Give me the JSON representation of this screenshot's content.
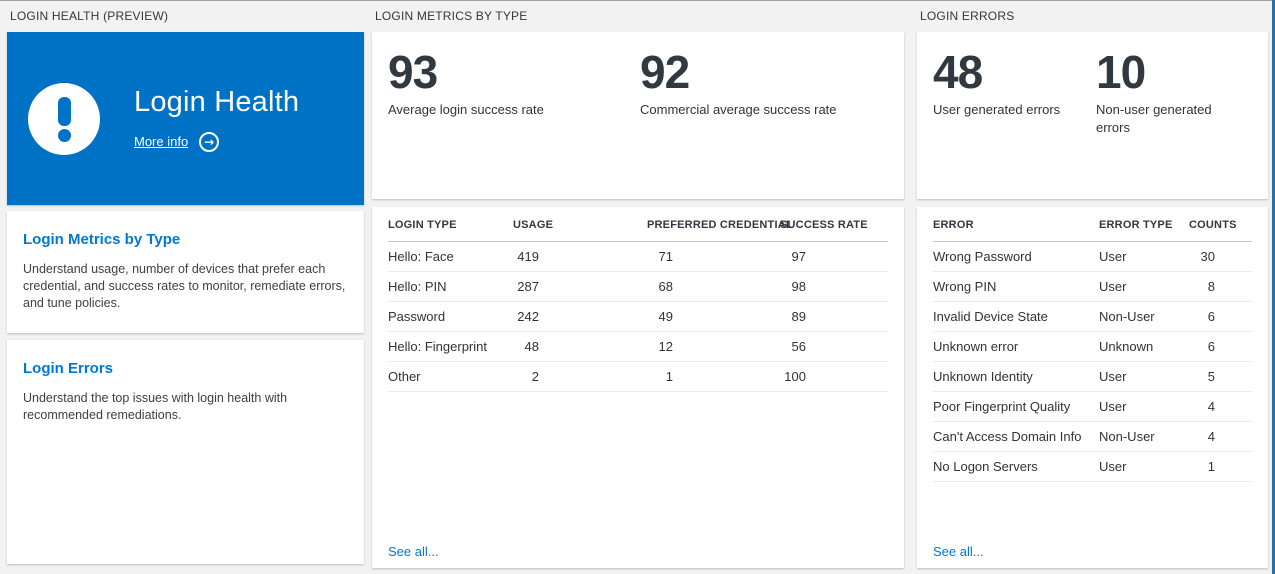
{
  "colors": {
    "accent": "#0078d4",
    "hero_blue": "#0072c6",
    "edge_blue": "#2271b1",
    "stat_text": "#32383f",
    "page_bg": "#f2f2f2"
  },
  "panels": {
    "health": {
      "title": "LOGIN HEALTH (PREVIEW)",
      "hero": {
        "heading": "Login Health",
        "more_info_label": "More info",
        "icon": "exclamation-icon",
        "link_icon": "arrow-right-circle-icon",
        "arrow_glyph": "→"
      },
      "sections": [
        {
          "heading": "Login Metrics by Type",
          "description": "Understand usage, number of devices that prefer each credential, and success rates to monitor, remediate errors, and tune policies."
        },
        {
          "heading": "Login Errors",
          "description": "Understand the top issues with login health with recommended remediations."
        }
      ]
    },
    "metrics": {
      "title": "LOGIN METRICS BY TYPE",
      "stats": [
        {
          "value": "93",
          "label": "Average login success rate"
        },
        {
          "value": "92",
          "label": "Commercial average success rate"
        }
      ],
      "table": {
        "columns": [
          "LOGIN TYPE",
          "USAGE",
          "PREFERRED CREDENTIAL",
          "SUCCESS RATE"
        ],
        "numeric_cols": [
          1,
          2,
          3
        ],
        "rows": [
          [
            "Hello: Face",
            "419",
            "71",
            "97"
          ],
          [
            "Hello: PIN",
            "287",
            "68",
            "98"
          ],
          [
            "Password",
            "242",
            "49",
            "89"
          ],
          [
            "Hello: Fingerprint",
            "48",
            "12",
            "56"
          ],
          [
            "Other",
            "2",
            "1",
            "100"
          ]
        ]
      },
      "see_all_label": "See all..."
    },
    "errors": {
      "title": "LOGIN ERRORS",
      "stats": [
        {
          "value": "48",
          "label": "User generated errors"
        },
        {
          "value": "10",
          "label": "Non-user generated errors"
        }
      ],
      "table": {
        "columns": [
          "ERROR",
          "ERROR TYPE",
          "COUNTS"
        ],
        "numeric_cols": [
          2
        ],
        "rows": [
          [
            "Wrong Password",
            "User",
            "30"
          ],
          [
            "Wrong PIN",
            "User",
            "8"
          ],
          [
            "Invalid Device State",
            "Non-User",
            "6"
          ],
          [
            "Unknown error",
            "Unknown",
            "6"
          ],
          [
            "Unknown Identity",
            "User",
            "5"
          ],
          [
            "Poor Fingerprint Quality",
            "User",
            "4"
          ],
          [
            "Can't Access Domain Info",
            "Non-User",
            "4"
          ],
          [
            "No Logon Servers",
            "User",
            "1"
          ]
        ]
      },
      "see_all_label": "See all..."
    }
  }
}
